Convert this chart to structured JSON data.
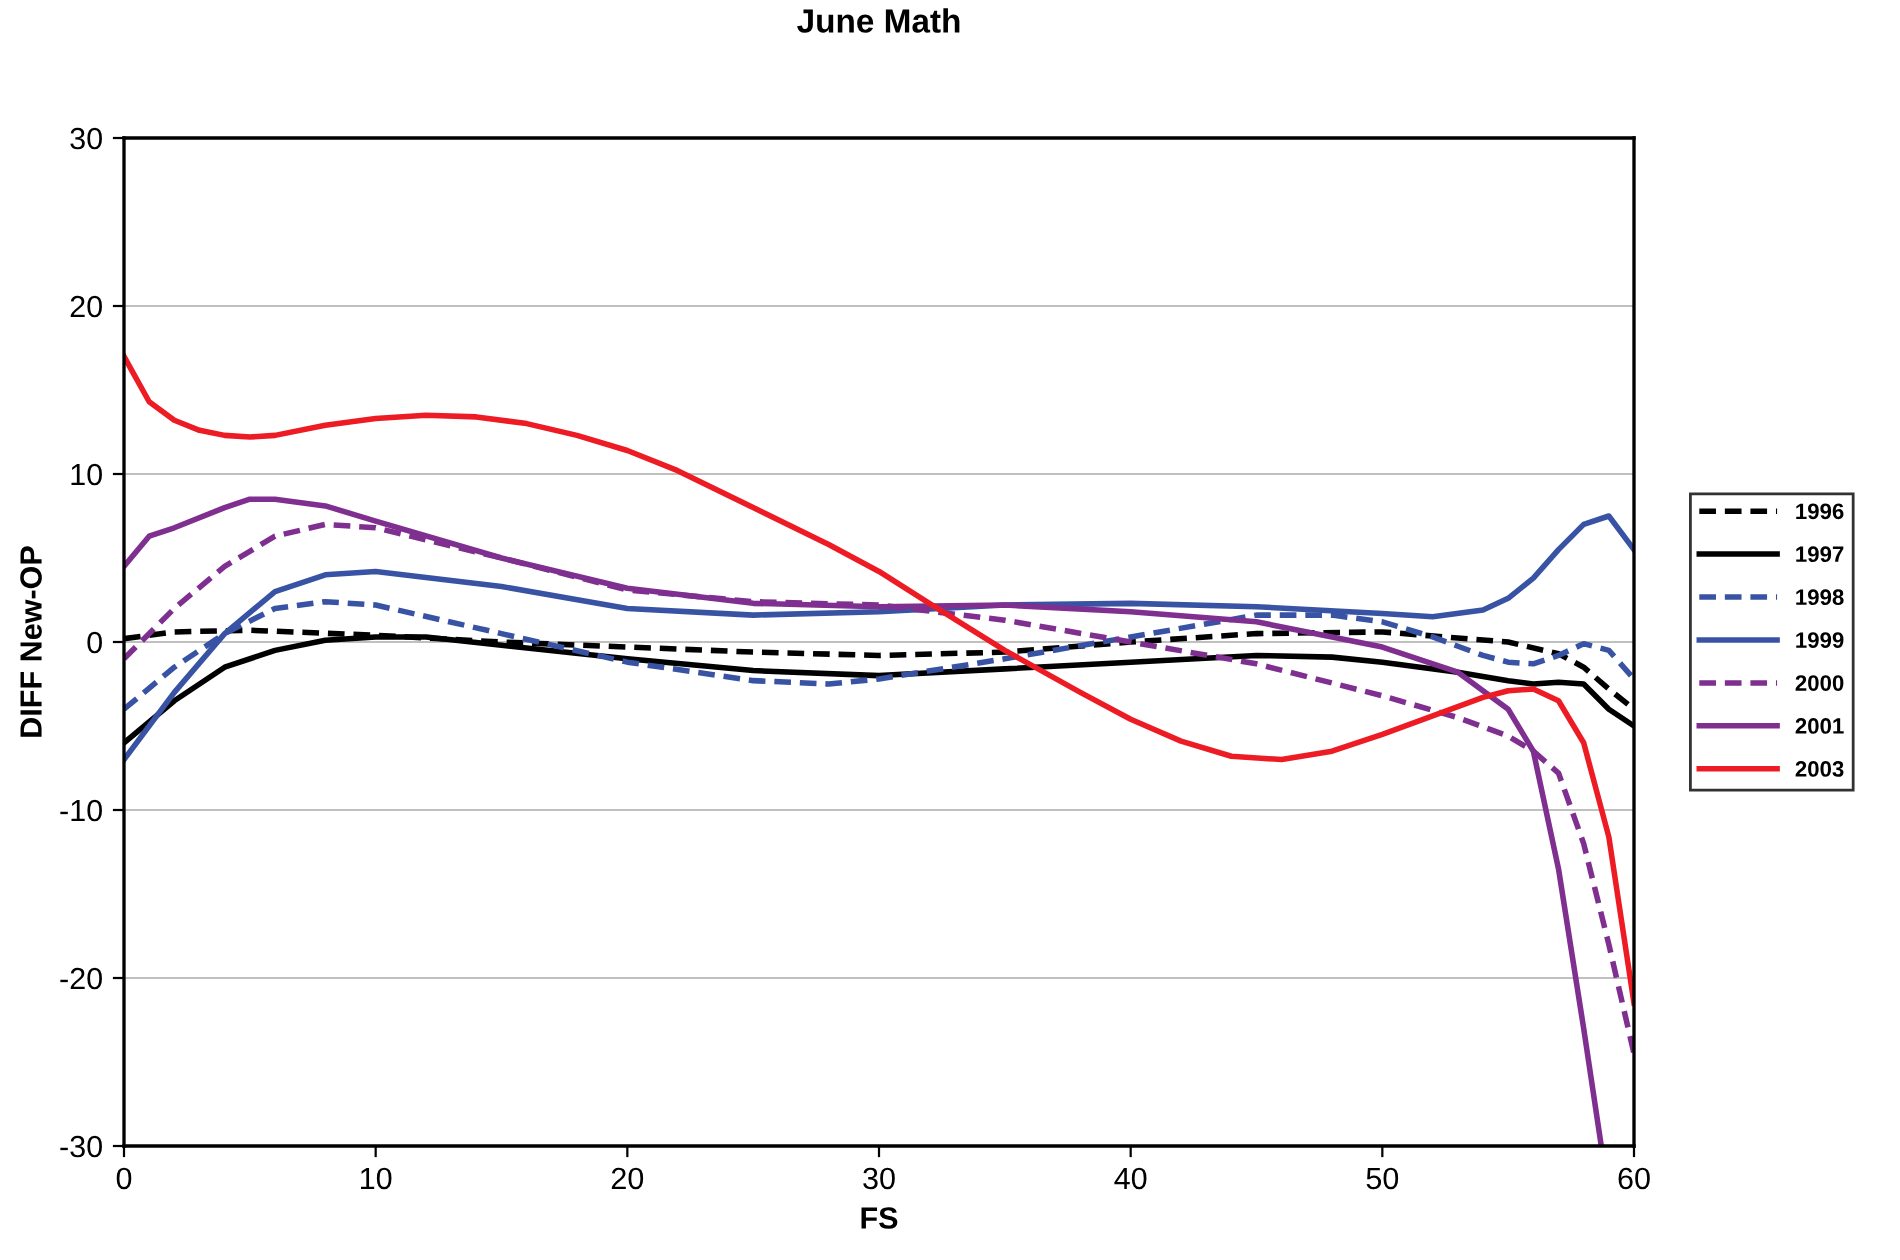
{
  "chart_data": {
    "type": "line",
    "title": "June Math",
    "xlabel": "FS",
    "ylabel": "DIFF New-OP",
    "xlim": [
      0,
      60
    ],
    "xticks": [
      0,
      10,
      20,
      30,
      40,
      50,
      60
    ],
    "ylim": [
      -30,
      30
    ],
    "yticks": [
      -30,
      -20,
      -10,
      0,
      10,
      20,
      30
    ],
    "grid": "y",
    "legend": "right",
    "marker": "none",
    "series": [
      {
        "name": "1996",
        "color": "#000000",
        "line_style": "dashed",
        "x": [
          0,
          2,
          5,
          10,
          15,
          20,
          25,
          30,
          35,
          40,
          45,
          50,
          55,
          57,
          58,
          59,
          60
        ],
        "values": [
          0.2,
          0.6,
          0.7,
          0.4,
          0,
          -0.3,
          -0.6,
          -0.8,
          -0.6,
          0,
          0.5,
          0.6,
          0,
          -0.7,
          -1.5,
          -2.8,
          -4
        ]
      },
      {
        "name": "1997",
        "color": "#000000",
        "line_style": "solid",
        "x": [
          0,
          2,
          4,
          6,
          8,
          10,
          12,
          15,
          20,
          25,
          30,
          35,
          40,
          45,
          48,
          50,
          53,
          55,
          56,
          57,
          58,
          59,
          60
        ],
        "values": [
          -6,
          -3.5,
          -1.5,
          -0.5,
          0.1,
          0.3,
          0.3,
          -0.2,
          -1,
          -1.7,
          -2,
          -1.6,
          -1.2,
          -0.8,
          -0.9,
          -1.2,
          -1.8,
          -2.3,
          -2.5,
          -2.4,
          -2.5,
          -4,
          -5
        ]
      },
      {
        "name": "1998",
        "color": "#3953a4",
        "line_style": "dashed",
        "x": [
          0,
          2,
          4,
          6,
          8,
          10,
          15,
          20,
          25,
          28,
          30,
          35,
          40,
          45,
          48,
          50,
          52,
          54,
          55,
          56,
          57,
          58,
          59,
          60
        ],
        "values": [
          -4,
          -1.5,
          0.5,
          2,
          2.4,
          2.2,
          0.5,
          -1.2,
          -2.3,
          -2.5,
          -2.2,
          -1,
          0.3,
          1.6,
          1.6,
          1.2,
          0.3,
          -0.8,
          -1.2,
          -1.3,
          -0.8,
          -0.1,
          -0.5,
          -2.2
        ]
      },
      {
        "name": "1999",
        "color": "#3953a4",
        "line_style": "solid",
        "x": [
          0,
          2,
          4,
          6,
          8,
          10,
          15,
          20,
          25,
          30,
          35,
          40,
          45,
          50,
          52,
          54,
          55,
          56,
          57,
          58,
          59,
          60
        ],
        "values": [
          -7,
          -3,
          0.5,
          3,
          4,
          4.2,
          3.3,
          2,
          1.6,
          1.8,
          2.2,
          2.3,
          2.1,
          1.7,
          1.5,
          1.9,
          2.6,
          3.8,
          5.5,
          7,
          7.5,
          5.5
        ]
      },
      {
        "name": "2000",
        "color": "#7f2f8f",
        "line_style": "dashed",
        "x": [
          0,
          2,
          4,
          6,
          8,
          10,
          15,
          20,
          25,
          30,
          35,
          40,
          45,
          50,
          53,
          55,
          56,
          57,
          58,
          59,
          60
        ],
        "values": [
          -1,
          2,
          4.5,
          6.3,
          7,
          6.8,
          5,
          3.1,
          2.4,
          2.2,
          1.3,
          0,
          -1.3,
          -3.2,
          -4.5,
          -5.6,
          -6.5,
          -7.8,
          -12,
          -18,
          -24.5
        ]
      },
      {
        "name": "2001",
        "color": "#7f2f8f",
        "line_style": "solid",
        "x": [
          0,
          1,
          2,
          4,
          5,
          6,
          8,
          10,
          15,
          20,
          25,
          30,
          35,
          40,
          45,
          50,
          53,
          55,
          56,
          57,
          58,
          58.7
        ],
        "values": [
          4.5,
          6.3,
          6.8,
          8,
          8.5,
          8.5,
          8.1,
          7.2,
          5,
          3.2,
          2.3,
          2.1,
          2.2,
          1.8,
          1.2,
          -0.3,
          -1.8,
          -4,
          -6.5,
          -13.5,
          -23,
          -30
        ]
      },
      {
        "name": "2003",
        "color": "#ed1c24",
        "line_style": "solid",
        "x": [
          0,
          1,
          2,
          3,
          4,
          5,
          6,
          8,
          10,
          12,
          14,
          16,
          18,
          20,
          22,
          25,
          28,
          30,
          32,
          35,
          38,
          40,
          42,
          44,
          46,
          48,
          50,
          52,
          54,
          55,
          56,
          57,
          58,
          59,
          60
        ],
        "values": [
          17,
          14.3,
          13.2,
          12.6,
          12.3,
          12.2,
          12.3,
          12.9,
          13.3,
          13.5,
          13.4,
          13,
          12.3,
          11.4,
          10.2,
          8,
          5.8,
          4.2,
          2.3,
          -0.5,
          -3,
          -4.6,
          -5.9,
          -6.8,
          -7,
          -6.5,
          -5.5,
          -4.4,
          -3.3,
          -2.9,
          -2.8,
          -3.5,
          -6,
          -11.6,
          -21.5
        ]
      }
    ]
  }
}
